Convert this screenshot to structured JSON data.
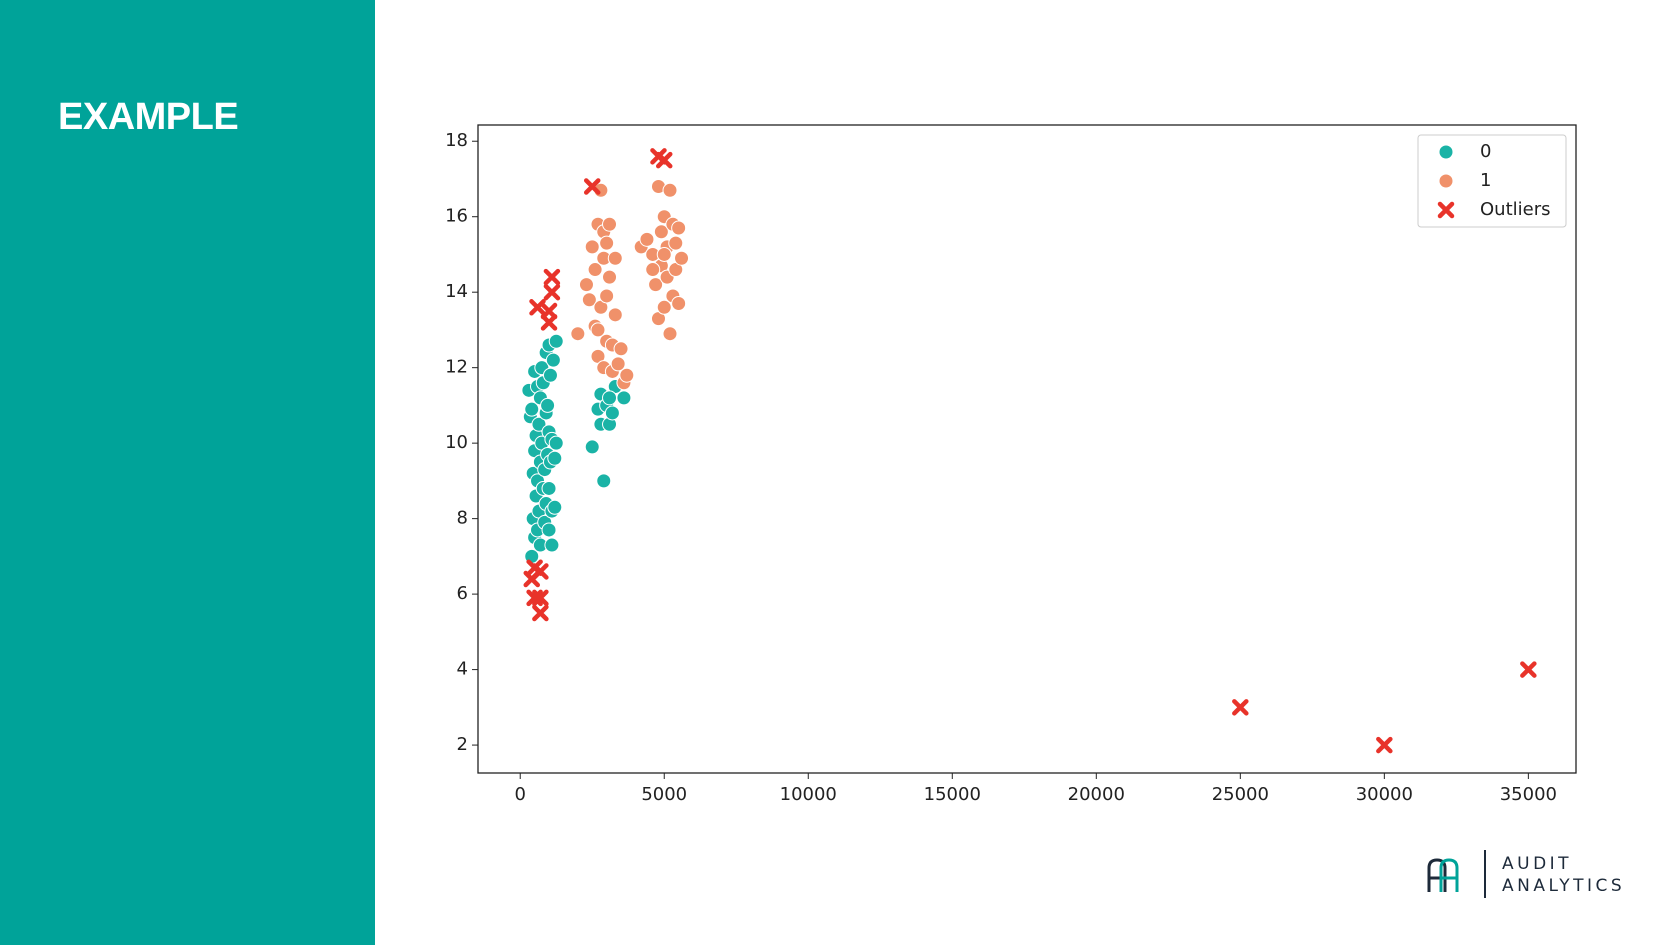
{
  "slide_title": "EXAMPLE",
  "logo": {
    "line1": "AUDIT",
    "line2": "ANALYTICS"
  },
  "chart_data": {
    "type": "scatter",
    "xlim": [
      -1466,
      36654
    ],
    "ylim": [
      1.26,
      18.43
    ],
    "xticks": [
      0,
      5000,
      10000,
      15000,
      20000,
      25000,
      30000,
      35000
    ],
    "yticks": [
      2,
      4,
      6,
      8,
      10,
      12,
      14,
      16,
      18
    ],
    "legend": "upper right",
    "series": [
      {
        "name": "0",
        "color": "#1ab3a6",
        "marker": "circle",
        "x": [
          300,
          350,
          400,
          400,
          450,
          450,
          500,
          500,
          500,
          550,
          550,
          600,
          600,
          600,
          650,
          650,
          700,
          700,
          700,
          750,
          750,
          800,
          800,
          850,
          850,
          900,
          900,
          900,
          950,
          950,
          1000,
          1000,
          1000,
          1000,
          1050,
          1050,
          1100,
          1100,
          1100,
          1150,
          1200,
          1200,
          1250,
          1250,
          2500,
          2700,
          2800,
          2800,
          2900,
          3000,
          3100,
          3200,
          3300,
          3600,
          3100
        ],
        "values": [
          11.4,
          10.7,
          10.9,
          7.0,
          8.0,
          9.2,
          11.9,
          9.8,
          7.5,
          10.2,
          8.6,
          11.5,
          9.0,
          7.7,
          10.5,
          8.2,
          11.2,
          9.5,
          7.3,
          12.0,
          10.0,
          8.8,
          11.6,
          9.3,
          7.9,
          12.4,
          10.8,
          8.4,
          9.7,
          11.0,
          12.6,
          10.3,
          7.7,
          8.8,
          9.5,
          11.8,
          10.1,
          8.2,
          7.3,
          12.2,
          9.6,
          8.3,
          12.7,
          10.0,
          9.9,
          10.9,
          10.5,
          11.3,
          9.0,
          11.0,
          10.5,
          10.8,
          11.5,
          11.2,
          11.2
        ]
      },
      {
        "name": "1",
        "color": "#f0916a",
        "marker": "circle",
        "x": [
          2000,
          2300,
          2400,
          2500,
          2600,
          2600,
          2700,
          2700,
          2800,
          2800,
          2900,
          2900,
          2900,
          3000,
          3000,
          3100,
          3100,
          3200,
          3200,
          3300,
          3300,
          3400,
          3500,
          3600,
          3700,
          3000,
          2700,
          4200,
          4400,
          4600,
          4700,
          4800,
          4800,
          4900,
          4900,
          5000,
          5000,
          5100,
          5100,
          5200,
          5200,
          5300,
          5300,
          5400,
          5400,
          5500,
          5500,
          5600,
          4600,
          5000
        ],
        "values": [
          12.9,
          14.2,
          13.8,
          15.2,
          13.1,
          14.6,
          12.3,
          15.8,
          13.6,
          16.7,
          12.0,
          14.9,
          15.6,
          12.7,
          13.9,
          14.4,
          15.8,
          11.9,
          12.6,
          13.4,
          14.9,
          12.1,
          12.5,
          11.6,
          11.8,
          15.3,
          13.0,
          15.2,
          15.4,
          15.0,
          14.2,
          13.3,
          16.8,
          14.7,
          15.6,
          13.6,
          16.0,
          14.4,
          15.2,
          12.9,
          16.7,
          13.9,
          15.8,
          14.6,
          15.3,
          13.7,
          15.7,
          14.9,
          14.6,
          15.0
        ]
      },
      {
        "name": "Outliers",
        "color": "#e8332a",
        "marker": "x",
        "x": [
          600,
          1000,
          1100,
          1100,
          1000,
          400,
          500,
          700,
          500,
          700,
          700,
          2500,
          4800,
          5000,
          25000,
          30000,
          35000
        ],
        "values": [
          13.6,
          13.5,
          14.4,
          14.0,
          13.2,
          6.4,
          6.7,
          6.6,
          5.9,
          5.9,
          5.5,
          16.8,
          17.6,
          17.5,
          3,
          2,
          4
        ]
      }
    ]
  }
}
